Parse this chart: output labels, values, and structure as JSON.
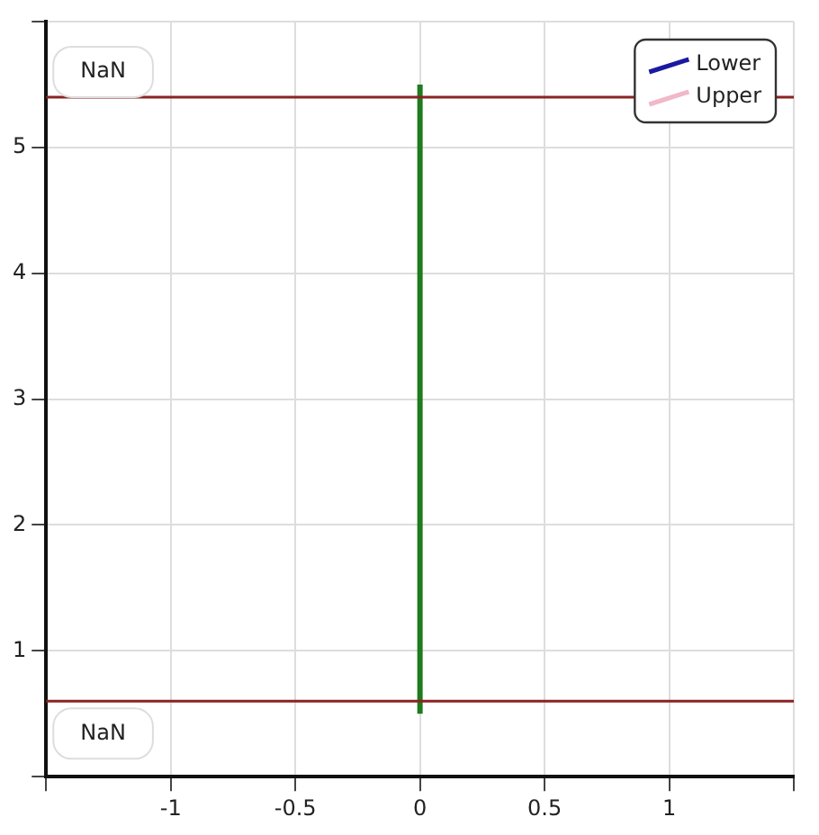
{
  "chart_data": {
    "type": "line",
    "series": [
      {
        "color": "#1e7b1e",
        "x": [
          0,
          0
        ],
        "values": [
          0.5,
          5.5
        ]
      },
      {
        "name": "Lower",
        "color": "#1a1aa0"
      },
      {
        "name": "Upper",
        "color": "#f0b8c8"
      }
    ],
    "xlim": [
      -1.5,
      1.5
    ],
    "xticks": [
      {
        "value": -1.5,
        "label": null
      },
      -1,
      -0.5,
      0,
      0.5,
      1,
      {
        "value": 1.5,
        "label": null
      }
    ],
    "ylim": [
      0,
      6
    ],
    "yticks": [
      {
        "value": 0,
        "label": null
      },
      1,
      2,
      3,
      4,
      5,
      {
        "value": 6,
        "label": null
      }
    ],
    "ref_lines": [
      {
        "axis": "y",
        "value": 5.4,
        "label": "NaN",
        "color": "#8b2323"
      },
      {
        "axis": "y",
        "value": 0.6,
        "label": "NaN",
        "color": "#8b2323"
      }
    ],
    "grid": true,
    "legend": "top right",
    "marker": "none",
    "line_style": "solid"
  }
}
